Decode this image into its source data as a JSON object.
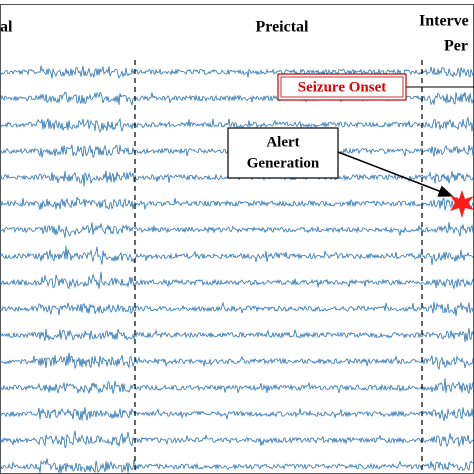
{
  "header": {
    "left": "al",
    "middle": "Preictal",
    "right_top": "Interve",
    "right_bottom": "Per"
  },
  "annotations": {
    "seizure_onset": "Seizure Onset",
    "alert_generation": [
      "Alert",
      "Generation"
    ]
  }
}
